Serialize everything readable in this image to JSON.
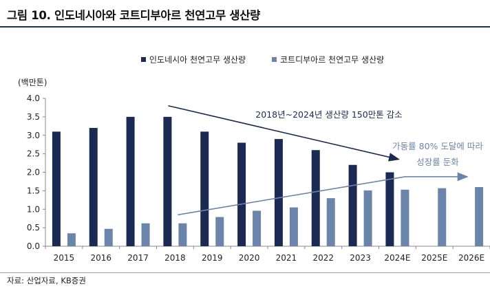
{
  "title": "그림 10. 인도네시아와 코트디부아르 천연고무 생산량",
  "source": "자료: 산업자료, KB증권",
  "chart_data": {
    "type": "bar",
    "ylabel": "(백만톤)",
    "ylim": [
      0,
      4.0
    ],
    "yticks": [
      "0.0",
      "0.5",
      "1.0",
      "1.5",
      "2.0",
      "2.5",
      "3.0",
      "3.5",
      "4.0"
    ],
    "categories": [
      "2015",
      "2016",
      "2017",
      "2018",
      "2019",
      "2020",
      "2021",
      "2022",
      "2023",
      "2024E",
      "2025E",
      "2026E"
    ],
    "series": [
      {
        "name": "인도네시아 천연고무 생산량",
        "color": "#1b2a52",
        "values": [
          3.1,
          3.2,
          3.5,
          3.5,
          3.1,
          2.8,
          2.9,
          2.6,
          2.2,
          2.0,
          null,
          null
        ]
      },
      {
        "name": "코트디부아르 천연고무 생산량",
        "color": "#6b84aa",
        "values": [
          0.35,
          0.47,
          0.62,
          0.62,
          0.79,
          0.96,
          1.05,
          1.3,
          1.51,
          1.53,
          1.57,
          1.6
        ]
      }
    ],
    "legend_position": "top",
    "grid": false,
    "annotations": [
      {
        "text": "2018년~2024년 생산량 150만톤 감소",
        "color": "#1b2a52"
      },
      {
        "text": "가동률 80% 도달에 따라",
        "color": "#6b84aa"
      },
      {
        "text": "성장률 둔화",
        "color": "#6b84aa"
      }
    ]
  }
}
